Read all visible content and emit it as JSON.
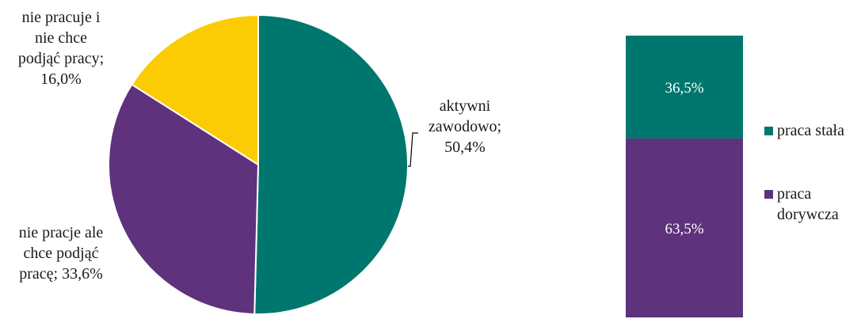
{
  "chart_data": [
    {
      "type": "pie",
      "categories": [
        "aktywni zawodowo",
        "nie pracje ale chce podjąć pracę",
        "nie pracuje i nie chce podjąć pracy"
      ],
      "values": [
        50.4,
        33.6,
        16.0
      ],
      "unit": "%",
      "colors": [
        "#00776E",
        "#5E327C",
        "#FBCC04"
      ],
      "data_labels": [
        [
          "aktywni",
          "zawodowo;",
          "50,4%"
        ],
        [
          "nie pracje ale",
          "chce podjąć",
          "pracę; 33,6%"
        ],
        [
          "nie pracuje i",
          "nie chce",
          "podjąć pracy;",
          "16,0%"
        ]
      ],
      "start_angle_deg": 0,
      "direction": "clockwise"
    },
    {
      "type": "bar",
      "stacked": true,
      "categories": [
        ""
      ],
      "series": [
        {
          "name": "praca stała",
          "values": [
            36.5
          ],
          "label": "36,5%",
          "color": "#00776E"
        },
        {
          "name": "praca dorywcza",
          "values": [
            63.5
          ],
          "label": "63,5%",
          "color": "#5E327C"
        }
      ],
      "ylim": [
        0,
        100
      ],
      "legend": {
        "position": "right",
        "entries": [
          {
            "lines": [
              "praca stała"
            ],
            "color": "#00776E"
          },
          {
            "lines": [
              "praca",
              "dorywcza"
            ],
            "color": "#5E327C"
          }
        ]
      }
    }
  ]
}
